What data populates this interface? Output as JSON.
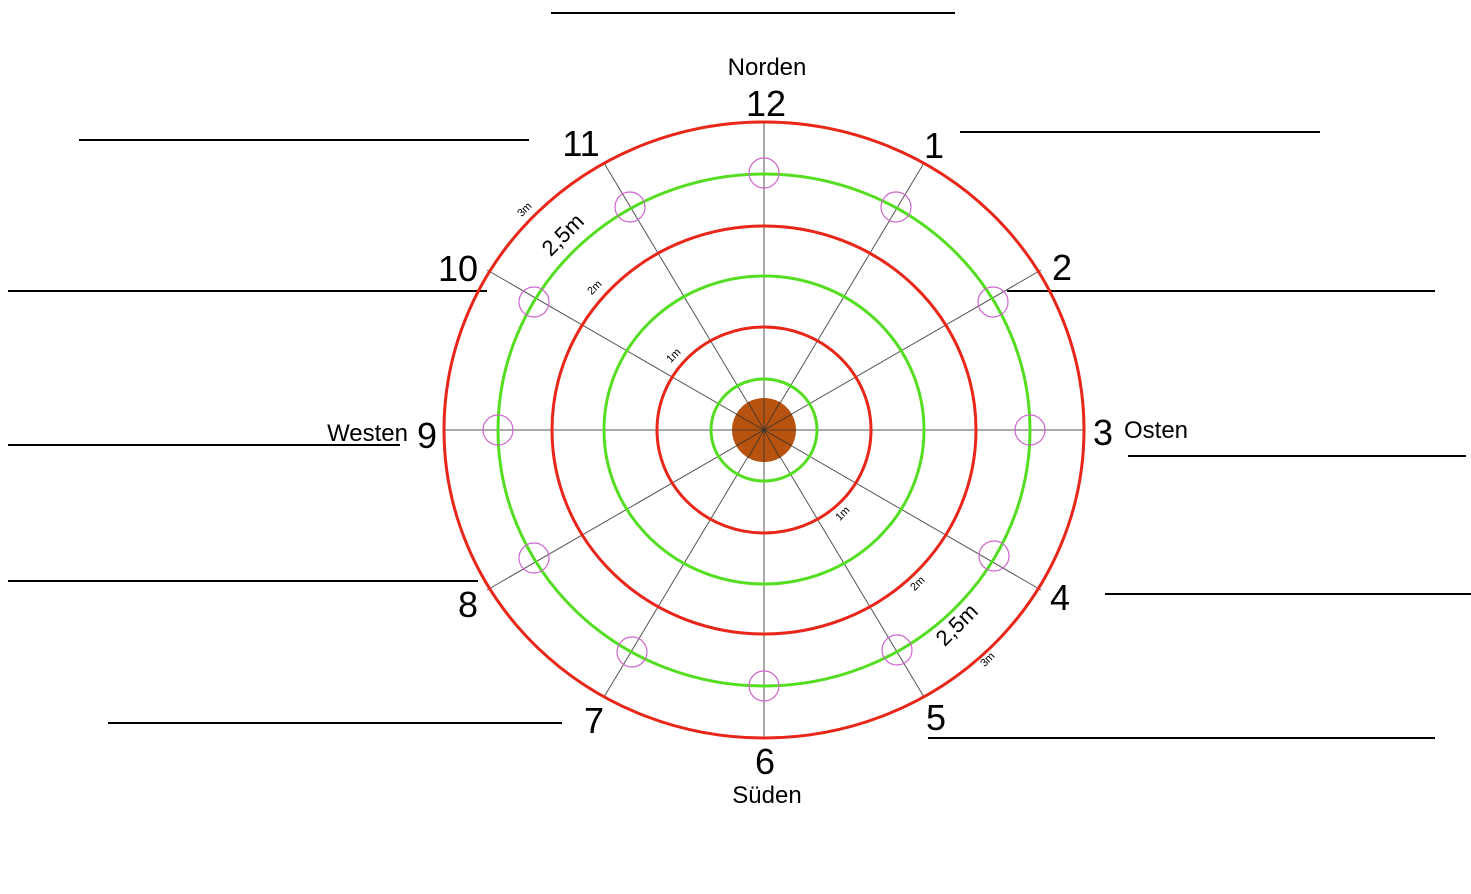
{
  "compass": {
    "north": "Norden",
    "south": "Süden",
    "east": "Osten",
    "west": "Westen"
  },
  "hours": [
    "12",
    "1",
    "2",
    "3",
    "4",
    "5",
    "6",
    "7",
    "8",
    "9",
    "10",
    "11"
  ],
  "radius_labels": {
    "r1_a": "1m",
    "r1_b": "1m",
    "r2_a": "2m",
    "r2_b": "2m",
    "r25_a": "2,5m",
    "r25_b": "2,5m",
    "r3_a": "3m",
    "r3_b": "3m"
  },
  "colors": {
    "red_ring": "#e8261a",
    "green_ring": "#55dd22",
    "markers": "#cc66cc",
    "center": "#b8530f",
    "spokes": "#555555",
    "lines": "#000000"
  }
}
